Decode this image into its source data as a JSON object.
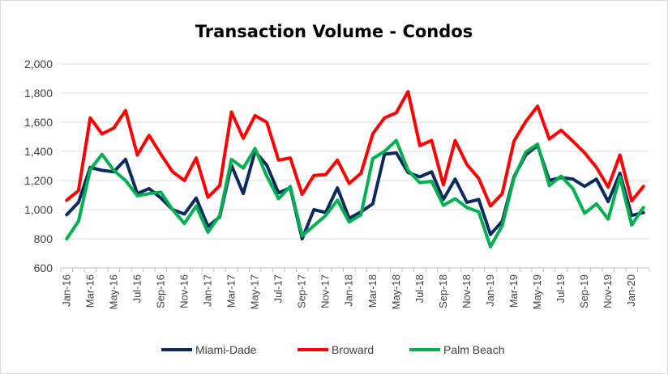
{
  "chart_data": {
    "type": "line",
    "title": "Transaction Volume - Condos",
    "xlabel": "",
    "ylabel": "",
    "ylim": [
      600,
      2000
    ],
    "yticks": [
      "600",
      "800",
      "1,000",
      "1,200",
      "1,400",
      "1,600",
      "1,800",
      "2,000"
    ],
    "grid": "horizontal",
    "legend_position": "bottom",
    "x_tick_labels": [
      "Jan-16",
      "Mar-16",
      "May-16",
      "Jul-16",
      "Sep-16",
      "Nov-16",
      "Jan-17",
      "Mar-17",
      "May-17",
      "Jul-17",
      "Sep-17",
      "Nov-17",
      "Jan-18",
      "Mar-18",
      "May-18",
      "Jul-18",
      "Sep-18",
      "Nov-18",
      "Jan-19",
      "Mar-19",
      "May-19",
      "Jul-19",
      "Sep-19",
      "Nov-19",
      "Jan-20"
    ],
    "categories": [
      "Jan-16",
      "Feb-16",
      "Mar-16",
      "Apr-16",
      "May-16",
      "Jun-16",
      "Jul-16",
      "Aug-16",
      "Sep-16",
      "Oct-16",
      "Nov-16",
      "Dec-16",
      "Jan-17",
      "Feb-17",
      "Mar-17",
      "Apr-17",
      "May-17",
      "Jun-17",
      "Jul-17",
      "Aug-17",
      "Sep-17",
      "Oct-17",
      "Nov-17",
      "Dec-17",
      "Jan-18",
      "Feb-18",
      "Mar-18",
      "Apr-18",
      "May-18",
      "Jun-18",
      "Jul-18",
      "Aug-18",
      "Sep-18",
      "Oct-18",
      "Nov-18",
      "Dec-18",
      "Jan-19",
      "Feb-19",
      "Mar-19",
      "Apr-19",
      "May-19",
      "Jun-19",
      "Jul-19",
      "Aug-19",
      "Sep-19",
      "Oct-19",
      "Nov-19",
      "Dec-19",
      "Jan-20",
      "Feb-20"
    ],
    "series": [
      {
        "name": "Miami-Dade",
        "color": "#0c2a5e",
        "values": [
          965,
          1050,
          1290,
          1270,
          1260,
          1345,
          1110,
          1145,
          1080,
          1000,
          970,
          1080,
          885,
          950,
          1305,
          1110,
          1400,
          1305,
          1115,
          1150,
          800,
          1000,
          980,
          1150,
          940,
          985,
          1040,
          1380,
          1390,
          1255,
          1225,
          1260,
          1070,
          1210,
          1050,
          1070,
          830,
          920,
          1225,
          1375,
          1440,
          1200,
          1220,
          1210,
          1160,
          1210,
          1055,
          1250,
          960,
          980
        ]
      },
      {
        "name": "Broward",
        "color": "#ff0000",
        "values": [
          1065,
          1130,
          1630,
          1520,
          1560,
          1680,
          1375,
          1510,
          1380,
          1260,
          1200,
          1355,
          1085,
          1165,
          1670,
          1490,
          1645,
          1600,
          1340,
          1355,
          1105,
          1235,
          1240,
          1340,
          1180,
          1250,
          1520,
          1630,
          1665,
          1810,
          1440,
          1475,
          1170,
          1475,
          1310,
          1215,
          1025,
          1110,
          1470,
          1605,
          1710,
          1485,
          1545,
          1470,
          1390,
          1290,
          1155,
          1375,
          1060,
          1160
        ]
      },
      {
        "name": "Palm Beach",
        "color": "#00b050",
        "values": [
          800,
          920,
          1275,
          1380,
          1270,
          1200,
          1095,
          1110,
          1120,
          1000,
          905,
          1025,
          845,
          960,
          1345,
          1285,
          1420,
          1230,
          1075,
          1160,
          820,
          890,
          960,
          1065,
          915,
          965,
          1350,
          1400,
          1475,
          1270,
          1185,
          1195,
          1030,
          1075,
          1015,
          985,
          745,
          890,
          1215,
          1395,
          1450,
          1165,
          1230,
          1145,
          975,
          1040,
          935,
          1225,
          895,
          1015
        ]
      }
    ]
  }
}
